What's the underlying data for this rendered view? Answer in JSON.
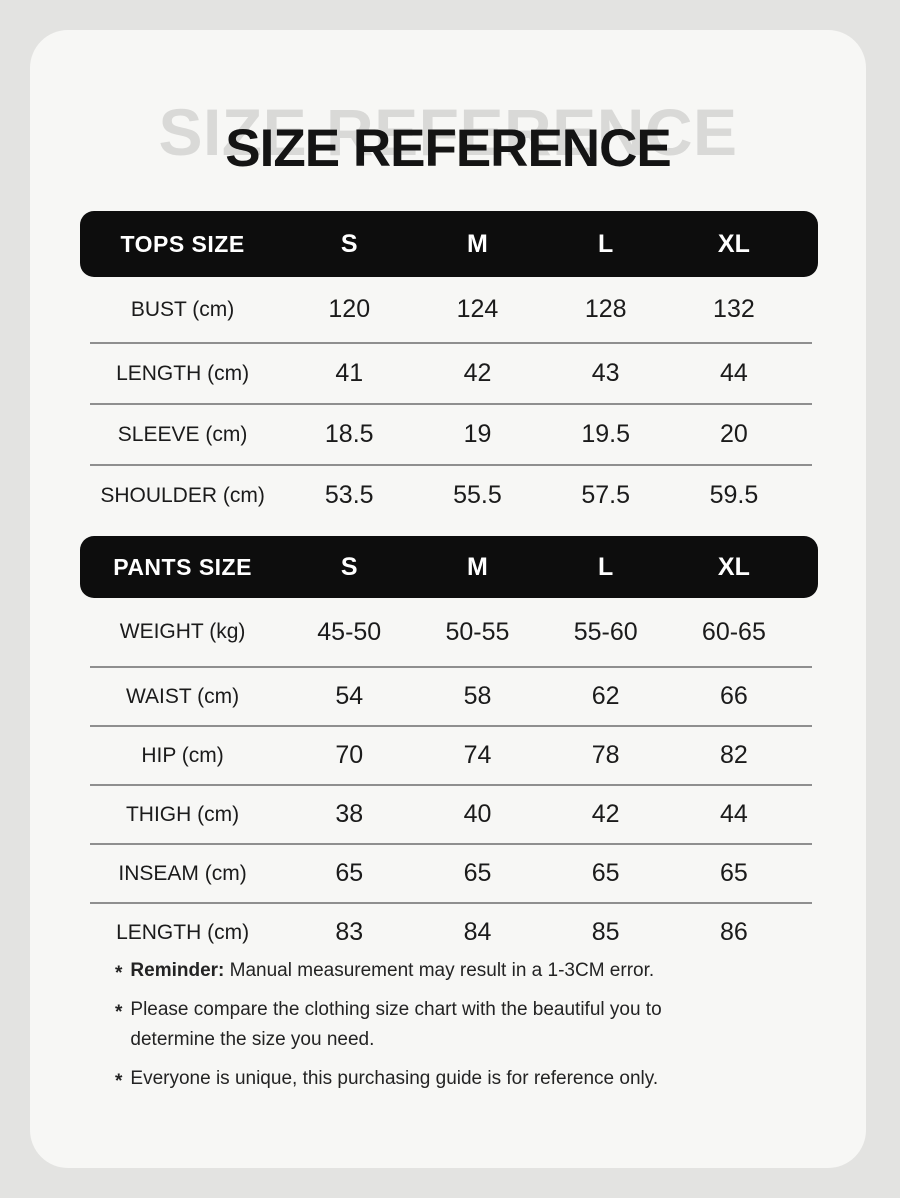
{
  "title": {
    "echo": "SIZE REFERENCE",
    "main": "SIZE REFERENCE"
  },
  "tables": [
    {
      "header_label": "TOPS SIZE",
      "sizes": [
        "S",
        "M",
        "L",
        "XL"
      ],
      "rows": [
        {
          "label": "BUST (cm)",
          "values": [
            "120",
            "124",
            "128",
            "132"
          ]
        },
        {
          "label": "LENGTH (cm)",
          "values": [
            "41",
            "42",
            "43",
            "44"
          ]
        },
        {
          "label": "SLEEVE (cm)",
          "values": [
            "18.5",
            "19",
            "19.5",
            "20"
          ]
        },
        {
          "label": "SHOULDER (cm)",
          "values": [
            "53.5",
            "55.5",
            "57.5",
            "59.5"
          ]
        }
      ]
    },
    {
      "header_label": "PANTS SIZE",
      "sizes": [
        "S",
        "M",
        "L",
        "XL"
      ],
      "rows": [
        {
          "label": "WEIGHT (kg)",
          "values": [
            "45-50",
            "50-55",
            "55-60",
            "60-65"
          ]
        },
        {
          "label": "WAIST (cm)",
          "values": [
            "54",
            "58",
            "62",
            "66"
          ]
        },
        {
          "label": "HIP (cm)",
          "values": [
            "70",
            "74",
            "78",
            "82"
          ]
        },
        {
          "label": "THIGH (cm)",
          "values": [
            "38",
            "40",
            "42",
            "44"
          ]
        },
        {
          "label": "INSEAM (cm)",
          "values": [
            "65",
            "65",
            "65",
            "65"
          ]
        },
        {
          "label": "LENGTH (cm)",
          "values": [
            "83",
            "84",
            "85",
            "86"
          ]
        }
      ]
    }
  ],
  "notes": [
    {
      "marker": "*",
      "bold": "Reminder:",
      "lines": [
        "Manual measurement may result in a 1-3CM error."
      ]
    },
    {
      "marker": "*",
      "bold": "",
      "lines": [
        "Please compare the clothing size chart with the beautiful you to",
        "determine the size you need."
      ]
    },
    {
      "marker": "*",
      "bold": "",
      "lines": [
        "Everyone is unique, this purchasing guide is for reference only."
      ]
    }
  ],
  "colors": {
    "page_bg": "#e3e3e1",
    "card_bg": "#f7f7f5",
    "bar_bg": "#0d0d0d",
    "bar_text": "#ffffff",
    "text": "#1b1b1b",
    "echo_text": "#d9d9d7",
    "divider": "#8f8f8f"
  }
}
